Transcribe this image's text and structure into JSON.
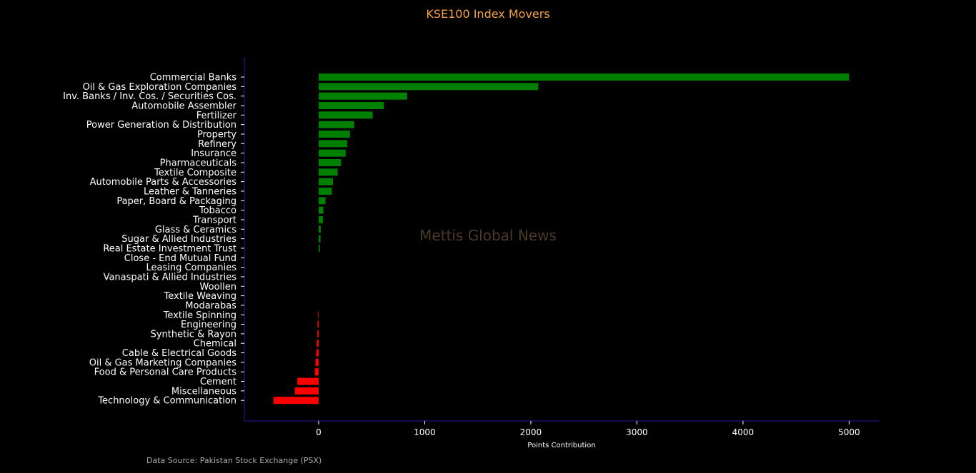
{
  "colors": {
    "background": "#000000",
    "title": "#f5a142",
    "positive": "#008000",
    "negative": "#ff0000",
    "axis": "#1f1fa0",
    "text": "#ffffff",
    "watermark": "#4a3a26",
    "source": "#aaaaaa"
  },
  "source_text": "Data Source: Pakistan Stock Exchange (PSX)",
  "watermark": "Mettis Global News",
  "chart_data": {
    "type": "bar",
    "orientation": "horizontal",
    "title": "KSE100 Index Movers",
    "xlabel": "Points Contribution",
    "ylabel": "",
    "xlim": [
      -700,
      5280
    ],
    "xticks": [
      0,
      1000,
      2000,
      3000,
      4000,
      5000
    ],
    "grid": false,
    "categories": [
      "Commercial Banks",
      "Oil & Gas Exploration Companies",
      "Inv. Banks / Inv. Cos. / Securities Cos.",
      "Automobile Assembler",
      "Fertilizer",
      "Power Generation & Distribution",
      "Property",
      "Refinery",
      "Insurance",
      "Pharmaceuticals",
      "Textile Composite",
      "Automobile Parts & Accessories",
      "Leather & Tanneries",
      "Paper, Board & Packaging",
      "Tobacco",
      "Transport",
      "Glass & Ceramics",
      "Sugar & Allied Industries",
      "Real Estate Investment Trust",
      "Close - End Mutual Fund",
      "Leasing Companies",
      "Vanaspati & Allied Industries",
      "Woollen",
      "Textile Weaving",
      "Modarabas",
      "Textile Spinning",
      "Engineering",
      "Synthetic & Rayon",
      "Chemical",
      "Cable & Electrical Goods",
      "Oil & Gas Marketing Companies",
      "Food & Personal Care Products",
      "Cement",
      "Miscellaneous",
      "Technology & Communication"
    ],
    "values": [
      5000,
      2070,
      835,
      615,
      510,
      335,
      295,
      270,
      255,
      210,
      180,
      135,
      125,
      65,
      45,
      40,
      20,
      18,
      12,
      0,
      0,
      0,
      0,
      0,
      0,
      -5,
      -10,
      -12,
      -18,
      -22,
      -30,
      -35,
      -200,
      -225,
      -425
    ]
  }
}
